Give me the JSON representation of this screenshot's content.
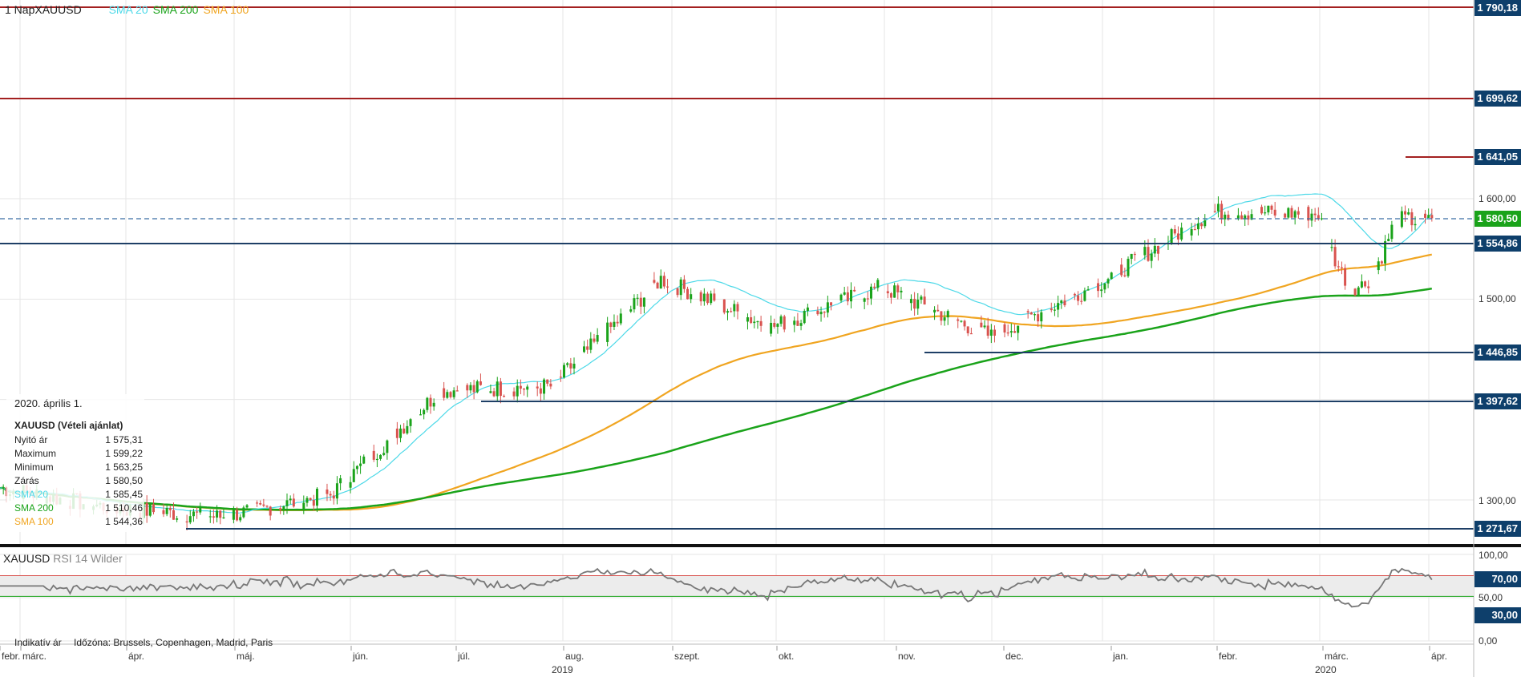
{
  "header": {
    "title": "1 NapXAUUSD",
    "indicators": [
      {
        "label": "SMA 20",
        "color": "#4dd9e8"
      },
      {
        "label": "SMA 200",
        "color": "#1aa31a"
      },
      {
        "label": "SMA 100",
        "color": "#f0a521"
      }
    ]
  },
  "info_box": {
    "date": "2020. április 1.",
    "symbol": "XAUUSD (Vételi ajánlat)",
    "rows": [
      {
        "label": "Nyitó ár",
        "value": "1 575,31",
        "color": "#222222"
      },
      {
        "label": "Maximum",
        "value": "1 599,22",
        "color": "#222222"
      },
      {
        "label": "Minimum",
        "value": "1 563,25",
        "color": "#222222"
      },
      {
        "label": "Zárás",
        "value": "1 580,50",
        "color": "#222222"
      },
      {
        "label": "SMA 20",
        "value": "1 585,45",
        "color": "#4dd9e8"
      },
      {
        "label": "SMA 200",
        "value": "1 510,46",
        "color": "#1aa31a"
      },
      {
        "label": "SMA 100",
        "value": "1 544,36",
        "color": "#f0a521"
      }
    ]
  },
  "price_axis": {
    "ticks": [
      "1 600,00",
      "1 500,00",
      "1 300,00"
    ],
    "badges": [
      {
        "label": "1 790,18",
        "color": "#0e3f6b"
      },
      {
        "label": "1 699,62",
        "color": "#0e3f6b"
      },
      {
        "label": "1 641,05",
        "color": "#0e3f6b"
      },
      {
        "label": "1 580,50",
        "color": "#1aa31a"
      },
      {
        "label": "1 554,86",
        "color": "#0e3f6b"
      },
      {
        "label": "1 446,85",
        "color": "#0e3f6b"
      },
      {
        "label": "1 397,62",
        "color": "#0e3f6b"
      },
      {
        "label": "1 271,67",
        "color": "#0e3f6b"
      }
    ]
  },
  "rsi": {
    "symbol": "XAUUSD",
    "label": "RSI 14 Wilder",
    "ticks": [
      "100,00",
      "50,00",
      "0,00"
    ],
    "badges": [
      {
        "label": "70,00",
        "color": "#0e3f6b"
      },
      {
        "label": "30,00",
        "color": "#0e3f6b"
      }
    ]
  },
  "x_axis": {
    "months": [
      "febr.",
      "márc.",
      "ápr.",
      "máj.",
      "jún.",
      "júl.",
      "aug.",
      "szept.",
      "okt.",
      "nov.",
      "dec.",
      "jan.",
      "febr.",
      "márc.",
      "ápr."
    ],
    "years": [
      "2019",
      "2020"
    ]
  },
  "footer": {
    "price_type": "Indikatív ár",
    "timezone": "Időzóna: Brussels, Copenhagen, Madrid, Paris"
  },
  "chart_data": {
    "type": "candlestick",
    "symbol": "XAUUSD",
    "y_ticks": [
      1300,
      1500,
      1600
    ],
    "support_resistance": [
      1790.18,
      1699.62,
      1641.05,
      1554.86,
      1446.85,
      1397.62,
      1271.67
    ],
    "current_price": 1580.5,
    "monthly_closes": [
      {
        "month": "febr.",
        "close": 1312
      },
      {
        "month": "márc.",
        "close": 1292
      },
      {
        "month": "ápr.",
        "close": 1283
      },
      {
        "month": "máj.",
        "close": 1305
      },
      {
        "month": "jún.",
        "close": 1409
      },
      {
        "month": "júl.",
        "close": 1413
      },
      {
        "month": "aug.",
        "close": 1520
      },
      {
        "month": "szept.",
        "close": 1472
      },
      {
        "month": "okt.",
        "close": 1512
      },
      {
        "month": "nov.",
        "close": 1463
      },
      {
        "month": "dec.",
        "close": 1517
      },
      {
        "month": "jan.",
        "close": 1587
      },
      {
        "month": "febr.",
        "close": 1585
      },
      {
        "month": "márc.",
        "close": 1577
      }
    ],
    "sma": [
      {
        "name": "SMA 20",
        "last": 1585.45
      },
      {
        "name": "SMA 200",
        "last": 1510.46
      },
      {
        "name": "SMA 100",
        "last": 1544.36
      }
    ],
    "rsi": {
      "name": "RSI 14 Wilder",
      "upper": 70,
      "lower": 30,
      "range": [
        0,
        100
      ]
    }
  }
}
